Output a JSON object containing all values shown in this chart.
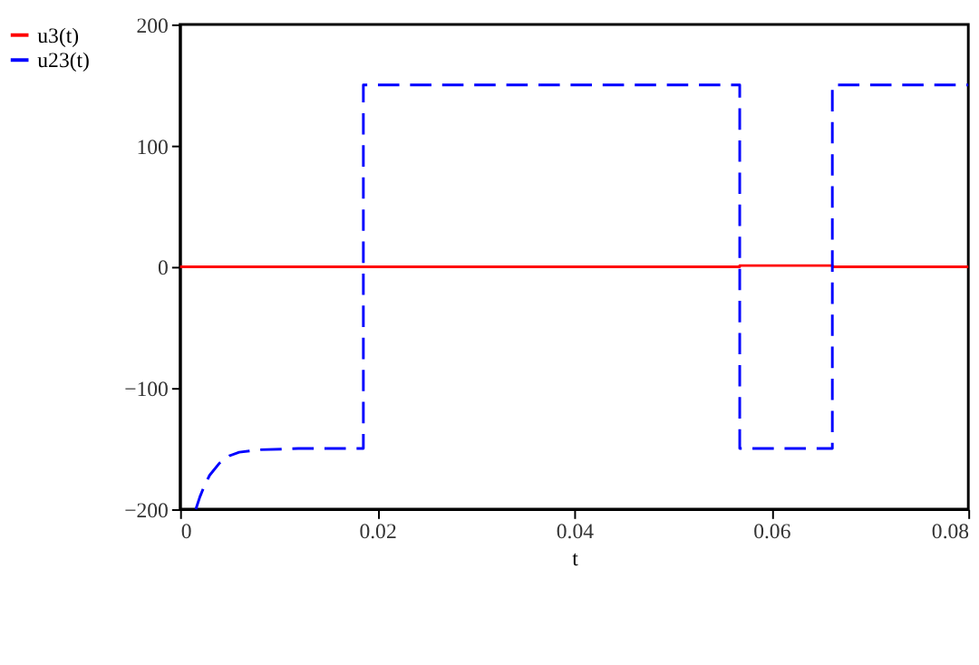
{
  "chart_data": {
    "type": "line",
    "xlabel": "t",
    "xlim": [
      0,
      0.08
    ],
    "xticks": [
      0,
      0.02,
      0.04,
      0.06,
      0.08
    ],
    "ylim": [
      -200,
      200
    ],
    "yticks": [
      -200,
      -100,
      0,
      100,
      200
    ],
    "grid": false,
    "legend": "left",
    "marker": "none",
    "series": [
      {
        "name": "u3(t)",
        "color": "#ff0000",
        "line_style": "solid",
        "x": [
          0,
          0.0186,
          0.0186,
          0.0568,
          0.0568,
          0.0662,
          0.0662,
          0.08
        ],
        "values": [
          0,
          0,
          0,
          0,
          1,
          1,
          0,
          0
        ]
      },
      {
        "name": "u23(t)",
        "color": "#0000ff",
        "line_style": "dashed",
        "x": [
          0.0016,
          0.002,
          0.0025,
          0.003,
          0.004,
          0.005,
          0.006,
          0.008,
          0.012,
          0.0186,
          0.0186,
          0.0568,
          0.0568,
          0.0662,
          0.0662,
          0.08
        ],
        "values": [
          -200,
          -190,
          -180,
          -172,
          -162,
          -156,
          -153,
          -151,
          -150,
          -150,
          150,
          150,
          -150,
          -150,
          150,
          150
        ]
      }
    ]
  }
}
